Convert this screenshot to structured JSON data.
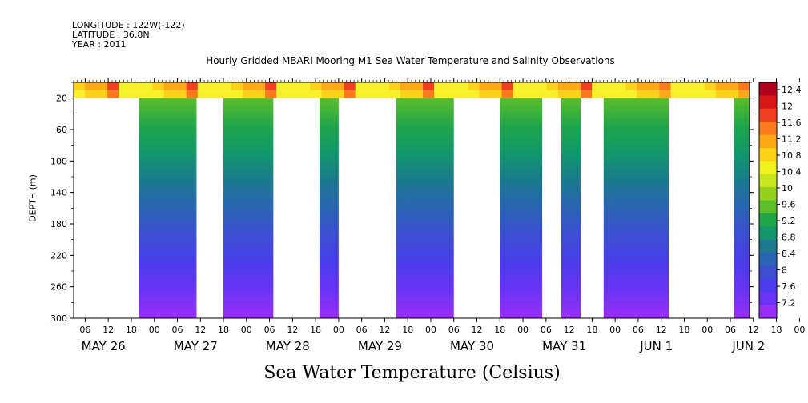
{
  "header": {
    "longitude": "LONGITUDE : 122W(-122)",
    "latitude": "LATITUDE : 36.8N",
    "year": "YEAR : 2011"
  },
  "chart_data": {
    "type": "heatmap",
    "title": "Hourly Gridded MBARI Mooring M1 Sea Water Temperature and Salinity Observations",
    "xlabel": "Sea Water Temperature (Celsius)",
    "ylabel": "DEPTH (m)",
    "x_hour_ticks": [
      "06",
      "12",
      "18",
      "00",
      "06",
      "12",
      "18",
      "00",
      "06",
      "12",
      "18",
      "00",
      "06",
      "12",
      "18",
      "00",
      "06",
      "12",
      "18",
      "00",
      "06",
      "12",
      "18",
      "00",
      "06",
      "12",
      "18",
      "00",
      "06",
      "12",
      "18",
      "00"
    ],
    "x_day_labels": [
      "MAY 26",
      "MAY 27",
      "MAY 28",
      "MAY 29",
      "MAY 30",
      "MAY 31",
      "JUN  1",
      "JUN  2"
    ],
    "x_range_hours_since_may26_00": [
      3,
      179
    ],
    "y_ticks": [
      20,
      60,
      100,
      140,
      180,
      220,
      260,
      300
    ],
    "ylim": [
      300,
      0
    ],
    "colorbar": {
      "labels": [
        "12.4",
        "12",
        "11.6",
        "11.2",
        "10.8",
        "10.4",
        "10",
        "9.6",
        "9.2",
        "8.8",
        "8.4",
        "8",
        "7.6",
        "7.2"
      ],
      "colors": [
        "#b0001c",
        "#d81818",
        "#f04020",
        "#fa7a1c",
        "#ffa818",
        "#ffd21a",
        "#f2f21e",
        "#c8e61e",
        "#96d01e",
        "#5cbe28",
        "#1fa64a",
        "#12976a",
        "#1b7a8e",
        "#2a64b4",
        "#3b4ed2",
        "#4a3ceb",
        "#6a34f5",
        "#9a2ef8"
      ],
      "min": 7.2,
      "max": 12.4
    },
    "surface_layer": {
      "description_values": "sea surface temperature ~10.4-12.4 C in top ~20 m",
      "top_depth": 0,
      "bottom_depth": 20
    },
    "data_blocks_hours": [
      [
        20,
        35
      ],
      [
        42,
        55
      ],
      [
        67,
        72
      ],
      [
        87,
        102
      ],
      [
        114,
        125
      ],
      [
        130,
        135
      ],
      [
        141,
        158
      ],
      [
        175,
        179
      ]
    ],
    "gradient": "temperature decreases with depth from ~12 C near surface to ~7.2 C at 300 m"
  }
}
